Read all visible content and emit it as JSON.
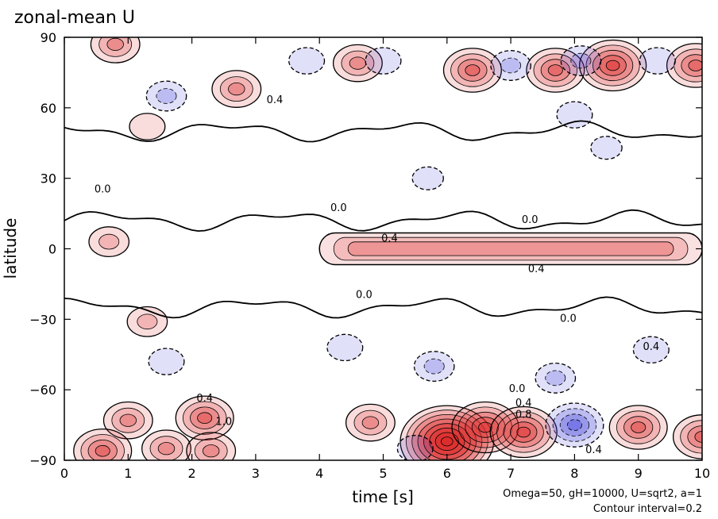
{
  "chart_data": {
    "type": "heatmap",
    "title": "zonal-mean U",
    "xlabel": "time [s]",
    "ylabel": "latitude",
    "xlim": [
      0,
      10
    ],
    "ylim": [
      -90,
      90
    ],
    "x_ticks": [
      "0",
      "1",
      "2",
      "3",
      "4",
      "5",
      "6",
      "7",
      "8",
      "9",
      "10"
    ],
    "y_ticks": [
      "90",
      "60",
      "30",
      "0",
      "−30",
      "−60",
      "−90"
    ],
    "grid": false,
    "colormap": {
      "negative": "#3c3cdc",
      "zero": "#ffffff",
      "positive": "#dc2828"
    },
    "contour_interval": 0.2,
    "contour_labels": [
      {
        "x": 0.6,
        "y": 24,
        "text": "0.0"
      },
      {
        "x": 3.3,
        "y": 62,
        "text": "0.4"
      },
      {
        "x": 4.3,
        "y": 16,
        "text": "0.0"
      },
      {
        "x": 7.3,
        "y": 11,
        "text": "0.0"
      },
      {
        "x": 5.1,
        "y": 3,
        "text": "0.4"
      },
      {
        "x": 7.4,
        "y": -10,
        "text": "0.4"
      },
      {
        "x": 4.7,
        "y": -21,
        "text": "0.0"
      },
      {
        "x": 7.9,
        "y": -31,
        "text": "0.0"
      },
      {
        "x": 9.2,
        "y": -43,
        "text": "0.4"
      },
      {
        "x": 7.1,
        "y": -61,
        "text": "0.0"
      },
      {
        "x": 7.2,
        "y": -67,
        "text": "0.4"
      },
      {
        "x": 7.2,
        "y": -72,
        "text": "0.8"
      },
      {
        "x": 2.2,
        "y": -65,
        "text": "0.4"
      },
      {
        "x": 2.5,
        "y": -75,
        "text": "1.0"
      },
      {
        "x": 8.3,
        "y": -87,
        "text": "0.4"
      }
    ],
    "features": [
      {
        "kind": "jet",
        "sign": "positive",
        "lat": 0,
        "t_start": 4.0,
        "t_end": 10.0,
        "peak": 0.6
      },
      {
        "kind": "blob",
        "sign": "positive",
        "t": 6.0,
        "lat": -82,
        "peak": 1.6
      },
      {
        "kind": "blob",
        "sign": "positive",
        "t": 6.6,
        "lat": -76,
        "peak": 1.0
      },
      {
        "kind": "blob",
        "sign": "positive",
        "t": 7.2,
        "lat": -78,
        "peak": 1.0
      },
      {
        "kind": "blob",
        "sign": "positive",
        "t": 2.2,
        "lat": -72,
        "peak": 0.8
      },
      {
        "kind": "blob",
        "sign": "positive",
        "t": 1.0,
        "lat": -73,
        "peak": 0.6
      },
      {
        "kind": "blob",
        "sign": "positive",
        "t": 9.0,
        "lat": -76,
        "peak": 0.8
      },
      {
        "kind": "blob",
        "sign": "positive",
        "t": 4.8,
        "lat": -74,
        "peak": 0.6
      },
      {
        "kind": "blob",
        "sign": "positive",
        "t": 0.6,
        "lat": -86,
        "peak": 0.8
      },
      {
        "kind": "blob",
        "sign": "positive",
        "t": 1.6,
        "lat": -85,
        "peak": 0.6
      },
      {
        "kind": "blob",
        "sign": "positive",
        "t": 2.3,
        "lat": -86,
        "peak": 0.6
      },
      {
        "kind": "blob",
        "sign": "positive",
        "t": 10.0,
        "lat": -80,
        "peak": 0.8
      },
      {
        "kind": "blob",
        "sign": "positive",
        "t": 1.3,
        "lat": -31,
        "peak": 0.4
      },
      {
        "kind": "blob",
        "sign": "positive",
        "t": 0.7,
        "lat": 3,
        "peak": 0.4
      },
      {
        "kind": "blob",
        "sign": "positive",
        "t": 2.7,
        "lat": 68,
        "peak": 0.6
      },
      {
        "kind": "blob",
        "sign": "positive",
        "t": 4.6,
        "lat": 79,
        "peak": 0.6
      },
      {
        "kind": "blob",
        "sign": "positive",
        "t": 6.4,
        "lat": 76,
        "peak": 0.8
      },
      {
        "kind": "blob",
        "sign": "positive",
        "t": 7.7,
        "lat": 76,
        "peak": 0.8
      },
      {
        "kind": "blob",
        "sign": "positive",
        "t": 8.6,
        "lat": 78,
        "peak": 1.0
      },
      {
        "kind": "blob",
        "sign": "positive",
        "t": 9.9,
        "lat": 78,
        "peak": 0.8
      },
      {
        "kind": "blob",
        "sign": "positive",
        "t": 0.8,
        "lat": 87,
        "peak": 0.6
      },
      {
        "kind": "blob",
        "sign": "positive",
        "t": 1.3,
        "lat": 52,
        "peak": 0.3
      },
      {
        "kind": "blob",
        "sign": "negative",
        "t": 8.0,
        "lat": -75,
        "peak": -0.8
      },
      {
        "kind": "blob",
        "sign": "negative",
        "t": 7.7,
        "lat": -55,
        "peak": -0.4
      },
      {
        "kind": "blob",
        "sign": "negative",
        "t": 5.8,
        "lat": -50,
        "peak": -0.4
      },
      {
        "kind": "blob",
        "sign": "negative",
        "t": 4.4,
        "lat": -42,
        "peak": -0.3
      },
      {
        "kind": "blob",
        "sign": "negative",
        "t": 9.2,
        "lat": -43,
        "peak": -0.3
      },
      {
        "kind": "blob",
        "sign": "negative",
        "t": 1.6,
        "lat": -48,
        "peak": -0.3
      },
      {
        "kind": "blob",
        "sign": "negative",
        "t": 5.5,
        "lat": -85,
        "peak": -0.3
      },
      {
        "kind": "blob",
        "sign": "negative",
        "t": 1.6,
        "lat": 65,
        "peak": -0.4
      },
      {
        "kind": "blob",
        "sign": "negative",
        "t": 5.0,
        "lat": 80,
        "peak": -0.3
      },
      {
        "kind": "blob",
        "sign": "negative",
        "t": 7.0,
        "lat": 78,
        "peak": -0.4
      },
      {
        "kind": "blob",
        "sign": "negative",
        "t": 8.1,
        "lat": 80,
        "peak": -0.4
      },
      {
        "kind": "blob",
        "sign": "negative",
        "t": 9.3,
        "lat": 80,
        "peak": -0.3
      },
      {
        "kind": "blob",
        "sign": "negative",
        "t": 8.0,
        "lat": 57,
        "peak": -0.3
      },
      {
        "kind": "blob",
        "sign": "negative",
        "t": 8.5,
        "lat": 43,
        "peak": -0.2
      },
      {
        "kind": "blob",
        "sign": "negative",
        "t": 5.7,
        "lat": 30,
        "peak": -0.2
      },
      {
        "kind": "blob",
        "sign": "negative",
        "t": 3.8,
        "lat": 80,
        "peak": -0.3
      }
    ]
  },
  "notes": {
    "params": "Omega=50, gH=10000, U=sqrt2, a=1",
    "contour": "Contour interval=0.2"
  }
}
